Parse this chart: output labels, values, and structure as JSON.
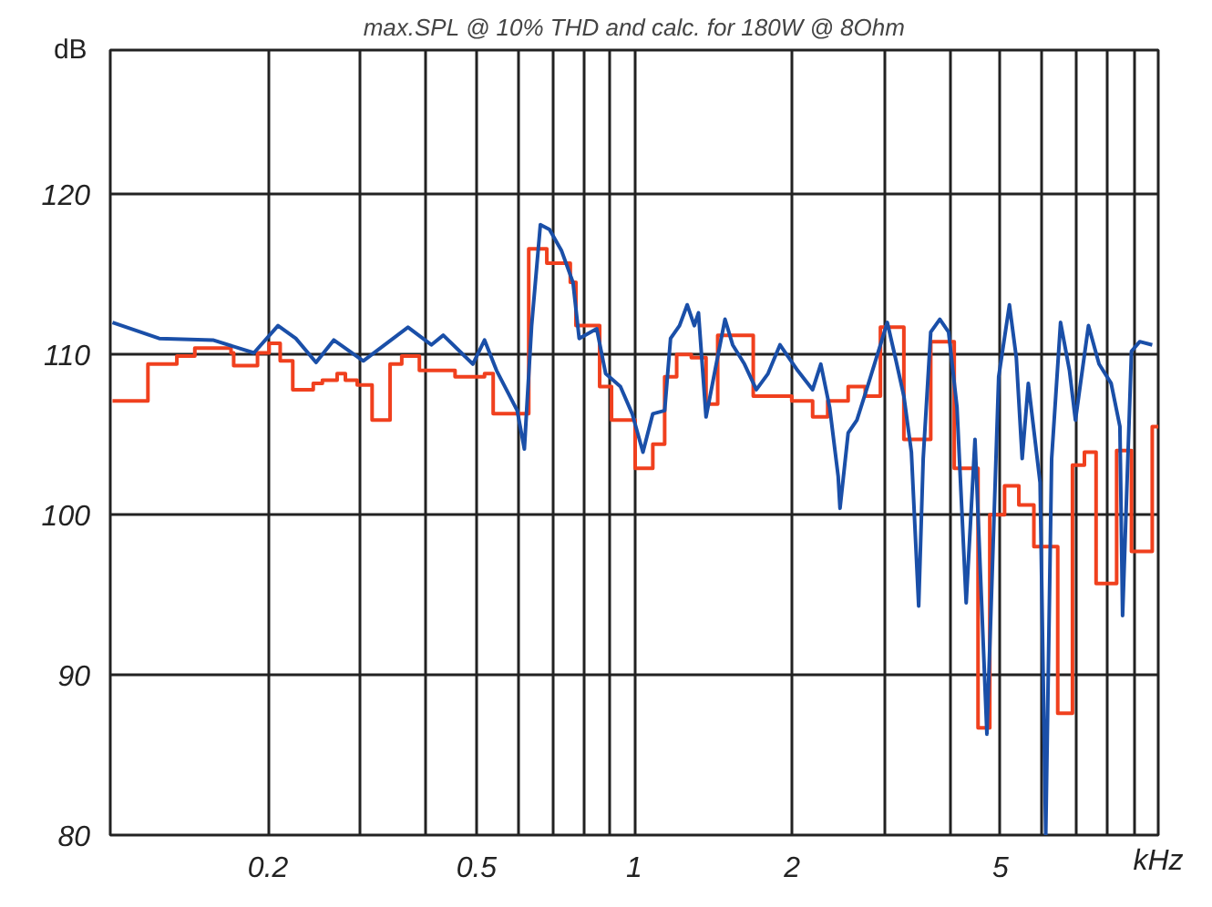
{
  "chart_data": {
    "type": "line",
    "title": "max.SPL @ 10% THD and calc. for 180W @ 8Ohm",
    "xlabel": "kHz",
    "ylabel": "dB",
    "log": "x",
    "grid": true,
    "xlim": [
      0.1,
      10
    ],
    "ylim": [
      80,
      129
    ],
    "xticks": [
      0.2,
      {
        "value": 0.3,
        "label": null
      },
      {
        "value": 0.4,
        "label": null
      },
      0.5,
      {
        "value": 0.6,
        "label": null
      },
      {
        "value": 0.7,
        "label": null
      },
      {
        "value": 0.8,
        "label": null
      },
      {
        "value": 0.9,
        "label": null
      },
      1,
      2,
      {
        "value": 3,
        "label": null
      },
      {
        "value": 4,
        "label": null
      },
      5,
      {
        "value": 6,
        "label": null
      },
      {
        "value": 7,
        "label": null
      },
      {
        "value": 8,
        "label": null
      },
      {
        "value": 9,
        "label": null
      }
    ],
    "yticks": [
      80,
      90,
      100,
      110,
      120
    ],
    "series": [
      {
        "type": "step",
        "color": "#f0401e",
        "x": [
          0.101,
          0.118,
          0.134,
          0.145,
          0.17,
          0.172,
          0.191,
          0.201,
          0.211,
          0.223,
          0.244,
          0.254,
          0.271,
          0.281,
          0.296,
          0.316,
          0.342,
          0.36,
          0.389,
          0.455,
          0.518,
          0.538,
          0.629,
          0.681,
          0.755,
          0.774,
          0.859,
          0.905,
          1.004,
          1.085,
          1.143,
          1.205,
          1.285,
          1.371,
          1.443,
          1.687,
          1.998,
          2.19,
          2.34,
          2.56,
          2.76,
          2.95,
          3.27,
          3.68,
          4.08,
          4.53,
          4.77,
          5.09,
          5.42,
          5.79,
          6.43,
          6.86,
          7.23,
          7.61,
          8.33,
          8.89,
          9.74,
          10
        ],
        "values": [
          107.1,
          109.4,
          109.9,
          110.4,
          110.1,
          109.3,
          110.1,
          110.7,
          109.6,
          107.8,
          108.2,
          108.4,
          108.8,
          108.4,
          108.1,
          105.9,
          109.4,
          109.9,
          109.0,
          108.6,
          108.8,
          106.3,
          116.6,
          115.7,
          114.5,
          111.8,
          108.0,
          105.9,
          102.9,
          104.4,
          108.6,
          110.0,
          109.8,
          106.9,
          111.2,
          107.4,
          107.1,
          106.1,
          107.1,
          108.0,
          107.4,
          111.7,
          104.7,
          110.8,
          102.9,
          86.7,
          100.0,
          101.8,
          100.6,
          98.0,
          87.6,
          103.1,
          103.9,
          95.7,
          104.0,
          97.7,
          105.5,
          105.5
        ]
      },
      {
        "color": "#1a4fa8",
        "x": [
          0.101,
          0.124,
          0.157,
          0.188,
          0.209,
          0.226,
          0.247,
          0.267,
          0.304,
          0.37,
          0.41,
          0.432,
          0.492,
          0.518,
          0.546,
          0.598,
          0.617,
          0.637,
          0.662,
          0.689,
          0.726,
          0.764,
          0.785,
          0.848,
          0.882,
          0.941,
          0.991,
          1.039,
          1.085,
          1.143,
          1.173,
          1.22,
          1.262,
          1.302,
          1.326,
          1.371,
          1.426,
          1.49,
          1.541,
          1.623,
          1.71,
          1.8,
          1.897,
          2.05,
          2.19,
          2.27,
          2.36,
          2.45,
          2.47,
          2.56,
          2.66,
          2.8,
          2.95,
          3.04,
          3.15,
          3.27,
          3.38,
          3.49,
          3.56,
          3.68,
          3.83,
          3.98,
          4.13,
          4.3,
          4.47,
          4.71,
          4.96,
          5.2,
          5.36,
          5.5,
          5.65,
          5.95,
          6.1,
          6.26,
          6.51,
          6.77,
          6.95,
          7.36,
          7.71,
          8.13,
          8.45,
          8.55,
          8.89,
          9.22,
          9.74
        ],
        "values": [
          112.0,
          111.0,
          110.9,
          110.1,
          111.8,
          111.0,
          109.5,
          110.9,
          109.6,
          111.7,
          110.6,
          111.2,
          109.4,
          110.9,
          109.0,
          106.5,
          104.1,
          111.8,
          118.1,
          117.8,
          116.5,
          114.5,
          111.0,
          111.6,
          108.8,
          108.0,
          106.3,
          103.9,
          106.3,
          106.5,
          111.0,
          111.8,
          113.1,
          111.8,
          112.6,
          106.1,
          109.0,
          112.2,
          110.6,
          109.4,
          107.8,
          108.8,
          110.6,
          109.0,
          107.8,
          109.4,
          106.7,
          102.4,
          100.4,
          105.1,
          105.9,
          108.2,
          110.6,
          112.0,
          109.8,
          107.4,
          103.9,
          94.3,
          103.5,
          111.4,
          112.2,
          111.4,
          106.7,
          94.5,
          104.7,
          86.3,
          108.6,
          113.1,
          109.8,
          103.5,
          108.2,
          102.0,
          80.0,
          103.5,
          112.0,
          109.0,
          105.9,
          111.8,
          109.4,
          108.2,
          105.5,
          93.7,
          110.2,
          110.8,
          110.6
        ]
      }
    ]
  }
}
